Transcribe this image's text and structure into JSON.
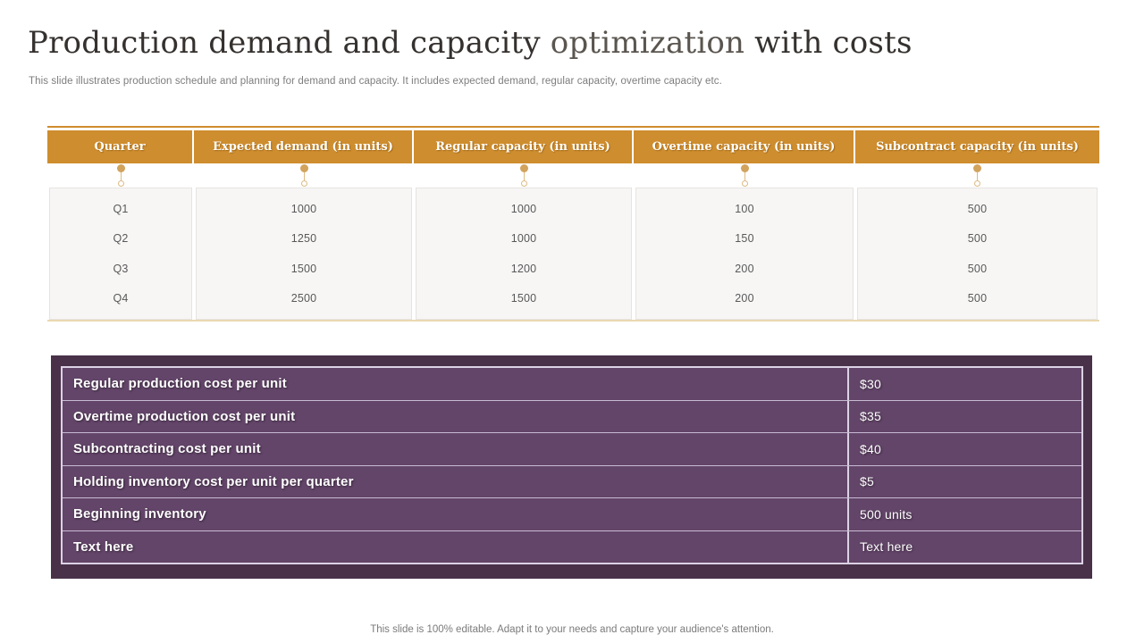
{
  "title": {
    "part1": "Production demand and capacity",
    "highlight": "optimization",
    "part2": "with costs"
  },
  "subtitle": "This slide illustrates production schedule and planning for demand and capacity. It includes expected demand, regular capacity, overtime capacity etc.",
  "capacity_table": {
    "columns": [
      "Quarter",
      "Expected demand (in units)",
      "Regular capacity (in units)",
      "Overtime capacity (in units)",
      "Subcontract capacity (in units)"
    ],
    "rows": [
      [
        "Q1",
        "1000",
        "1000",
        "100",
        "500"
      ],
      [
        "Q2",
        "1250",
        "1000",
        "150",
        "500"
      ],
      [
        "Q3",
        "1500",
        "1200",
        "200",
        "500"
      ],
      [
        "Q4",
        "2500",
        "1500",
        "200",
        "500"
      ]
    ]
  },
  "cost_table": {
    "rows": [
      {
        "label": "Regular production cost per unit",
        "value": "$30"
      },
      {
        "label": "Overtime production cost per unit",
        "value": "$35"
      },
      {
        "label": "Subcontracting cost per unit",
        "value": "$40"
      },
      {
        "label": "Holding inventory cost per unit per quarter",
        "value": "$5"
      },
      {
        "label": "Beginning inventory",
        "value": "500 units"
      },
      {
        "label": "Text here",
        "value": "Text here"
      }
    ]
  },
  "footer": "This slide is 100% editable. Adapt it to your needs and capture your audience's attention.",
  "colors": {
    "accent_orange": "#CE8D2E",
    "connector_tan": "#D8B279",
    "purple_dark": "#483149",
    "purple_row": "#634569",
    "body_text_gray": "#595959"
  }
}
